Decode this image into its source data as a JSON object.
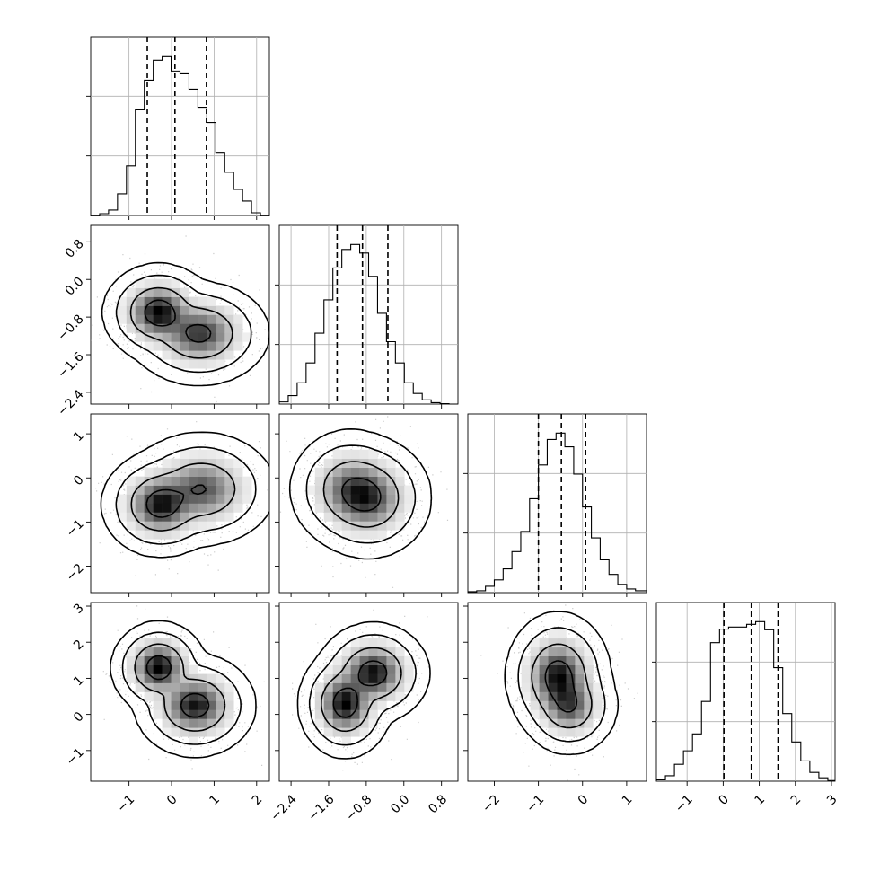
{
  "chart_data": {
    "type": "corner",
    "n_params": 4,
    "quantile_levels": [
      0.16,
      0.5,
      0.84
    ],
    "grid": true,
    "colors": {
      "line": "#000000",
      "grid": "#b0b0b0",
      "points": "#8c8c8c"
    },
    "params": [
      {
        "range": [
          -1.9,
          2.3
        ],
        "ticks": [
          -1,
          0,
          1,
          2
        ],
        "ticklabels": [
          "−1",
          "0",
          "1",
          "2"
        ],
        "quantiles": [
          -0.57,
          0.08,
          0.82
        ],
        "hist": {
          "edges": [
            -1.9,
            -1.69,
            -1.48,
            -1.27,
            -1.06,
            -0.85,
            -0.64,
            -0.43,
            -0.22,
            -0.01,
            0.2,
            0.41,
            0.62,
            0.83,
            1.04,
            1.25,
            1.46,
            1.67,
            1.88,
            2.09,
            2.3
          ],
          "counts": [
            0.3,
            2,
            6,
            24,
            55,
            118,
            150,
            172,
            177,
            160,
            158,
            140,
            120,
            103,
            70,
            48,
            29,
            16,
            3,
            0.3
          ]
        }
      },
      {
        "range": [
          -2.65,
          1.15
        ],
        "ticks": [
          -2.4,
          -1.6,
          -0.8,
          0.0,
          0.8
        ],
        "ticklabels": [
          "−2.4",
          "−1.6",
          "−0.8",
          "0.0",
          "0.8"
        ],
        "quantiles": [
          -1.42,
          -0.88,
          -0.34
        ],
        "hist": {
          "edges": [
            -2.65,
            -2.46,
            -2.27,
            -2.08,
            -1.89,
            -1.7,
            -1.51,
            -1.32,
            -1.13,
            -0.94,
            -0.75,
            -0.56,
            -0.37,
            -0.18,
            0.01,
            0.2,
            0.39,
            0.58,
            0.77,
            0.96,
            1.15
          ],
          "counts": [
            3,
            12,
            30,
            58,
            100,
            147,
            192,
            218,
            225,
            213,
            180,
            128,
            88,
            58,
            30,
            15,
            6,
            2,
            0.5,
            0
          ]
        }
      },
      {
        "range": [
          -2.6,
          1.45
        ],
        "ticks": [
          -2,
          -1,
          0,
          1
        ],
        "ticklabels": [
          "−2",
          "−1",
          "0",
          "1"
        ],
        "quantiles": [
          -1.0,
          -0.48,
          0.07
        ],
        "hist": {
          "edges": [
            -2.6,
            -2.4,
            -2.2,
            -2.0,
            -1.8,
            -1.6,
            -1.4,
            -1.2,
            -1.0,
            -0.8,
            -0.6,
            -0.4,
            -0.2,
            0.0,
            0.2,
            0.4,
            0.6,
            0.8,
            1.0,
            1.2,
            1.45
          ],
          "counts": [
            1,
            2,
            7,
            14,
            26,
            45,
            67,
            103,
            140,
            168,
            175,
            160,
            130,
            94,
            60,
            36,
            20,
            9,
            4,
            2
          ]
        }
      },
      {
        "range": [
          -1.85,
          3.1
        ],
        "ticks": [
          -1,
          0,
          1,
          2,
          3
        ],
        "ticklabels": [
          "−1",
          "0",
          "1",
          "2",
          "3"
        ],
        "quantiles": [
          0.02,
          0.78,
          1.52
        ],
        "hist": {
          "edges": [
            -1.85,
            -1.6,
            -1.35,
            -1.1,
            -0.85,
            -0.6,
            -0.35,
            -0.1,
            0.15,
            0.4,
            0.65,
            0.9,
            1.15,
            1.4,
            1.65,
            1.9,
            2.15,
            2.4,
            2.65,
            2.9,
            3.1
          ],
          "counts": [
            2,
            8,
            25,
            45,
            70,
            118,
            205,
            225,
            228,
            228,
            232,
            236,
            224,
            168,
            100,
            58,
            30,
            13,
            5,
            1
          ]
        }
      }
    ],
    "pairs": [
      {
        "x": 0,
        "y": 1,
        "modes": [
          {
            "mx": -0.3,
            "my": -0.7,
            "sx": 0.33,
            "sy": 0.26,
            "w": 1.0
          },
          {
            "mx": 0.65,
            "my": -1.15,
            "sx": 0.42,
            "sy": 0.28,
            "w": 0.75
          }
        ]
      },
      {
        "x": 0,
        "y": 2,
        "modes": [
          {
            "mx": -0.25,
            "my": -0.6,
            "sx": 0.35,
            "sy": 0.3,
            "w": 1.0
          },
          {
            "mx": 0.7,
            "my": -0.25,
            "sx": 0.45,
            "sy": 0.33,
            "w": 0.65
          }
        ]
      },
      {
        "x": 1,
        "y": 2,
        "modes": [
          {
            "mx": -0.75,
            "my": -0.45,
            "sx": 0.34,
            "sy": 0.35,
            "w": 1.0
          },
          {
            "mx": -1.15,
            "my": -0.25,
            "sx": 0.33,
            "sy": 0.35,
            "w": 0.7
          }
        ]
      },
      {
        "x": 0,
        "y": 3,
        "modes": [
          {
            "mx": -0.3,
            "my": 1.3,
            "sx": 0.28,
            "sy": 0.32,
            "w": 1.0
          },
          {
            "mx": 0.55,
            "my": 0.25,
            "sx": 0.36,
            "sy": 0.36,
            "w": 0.9
          }
        ]
      },
      {
        "x": 1,
        "y": 3,
        "modes": [
          {
            "mx": -1.25,
            "my": 0.3,
            "sx": 0.25,
            "sy": 0.38,
            "w": 1.0
          },
          {
            "mx": -0.65,
            "my": 1.15,
            "sx": 0.3,
            "sy": 0.35,
            "w": 0.95
          }
        ]
      },
      {
        "x": 2,
        "y": 3,
        "modes": [
          {
            "mx": -0.55,
            "my": 1.05,
            "sx": 0.3,
            "sy": 0.45,
            "w": 1.0
          },
          {
            "mx": -0.3,
            "my": 0.25,
            "sx": 0.28,
            "sy": 0.35,
            "w": 0.65
          }
        ]
      }
    ]
  }
}
